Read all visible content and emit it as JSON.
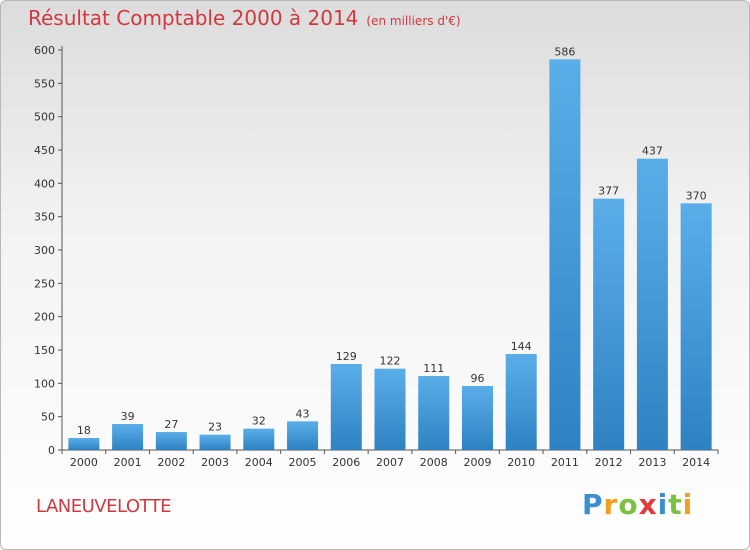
{
  "header": {
    "title": "Résultat Comptable 2000 à 2014",
    "unit": "(en milliers d'€)"
  },
  "commune": "LANEUVELOTTE",
  "logo": {
    "text": "Proxiti",
    "letters": [
      "P",
      "r",
      "o",
      "x",
      "i",
      "t",
      "i"
    ],
    "colors": [
      "#3a8fd0",
      "#f0a020",
      "#7cc142",
      "#e23b3b",
      "#3a8fd0",
      "#7cc142",
      "#f0a020"
    ]
  },
  "colors": {
    "bar_top": "#5aaee8",
    "bar_bottom": "#2f82c2",
    "title": "#d0393f"
  },
  "chart_data": {
    "type": "bar",
    "categories": [
      "2000",
      "2001",
      "2002",
      "2003",
      "2004",
      "2005",
      "2006",
      "2007",
      "2008",
      "2009",
      "2010",
      "2011",
      "2012",
      "2013",
      "2014"
    ],
    "values": [
      18,
      39,
      27,
      23,
      32,
      43,
      129,
      122,
      111,
      96,
      144,
      586,
      377,
      437,
      370
    ],
    "ylim": [
      0,
      600
    ],
    "yticks": [
      0,
      50,
      100,
      150,
      200,
      250,
      300,
      350,
      400,
      450,
      500,
      550,
      600
    ],
    "grid": false,
    "data_labels": true
  }
}
